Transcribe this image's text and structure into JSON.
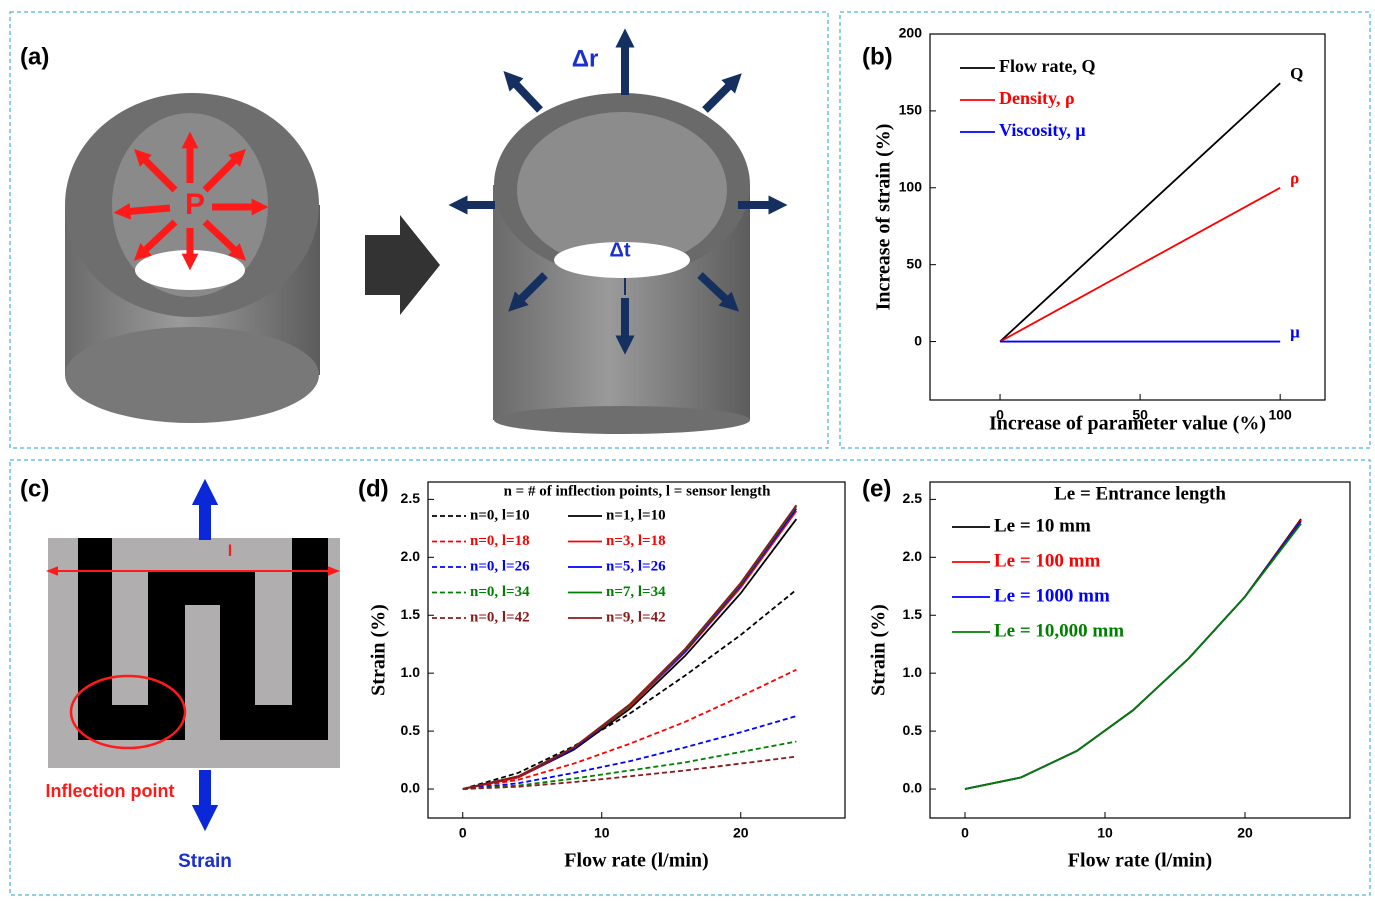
{
  "diagrams": {
    "a": {
      "label": "(a)",
      "pressure": "P",
      "radial_change": "Δr",
      "thickness_change": "Δt"
    },
    "c": {
      "label": "(c)",
      "length": "l",
      "inflection": "Inflection point",
      "strain": "Strain"
    }
  },
  "chart_data": [
    {
      "type": "line",
      "panel_label": "(b)",
      "x_label": "Increase of parameter value (%)",
      "y_label": "Increase of strain (%)",
      "x": [
        0,
        100
      ],
      "xlim": [
        -25,
        116
      ],
      "ylim": [
        -38,
        200
      ],
      "xticks": [
        0,
        50,
        100
      ],
      "yticks": [
        0,
        50,
        100,
        150,
        200
      ],
      "series": [
        {
          "name": "Flow rate, Q",
          "label": "Q",
          "color": "#000000",
          "values": [
            0,
            168
          ]
        },
        {
          "name": "Density, ρ",
          "label": "ρ",
          "color": "#ff0000",
          "values": [
            0,
            100
          ]
        },
        {
          "name": "Viscosity, μ",
          "label": "μ",
          "color": "#0000ff",
          "values": [
            0,
            0
          ]
        }
      ]
    },
    {
      "type": "line",
      "panel_label": "(d)",
      "x_label": "Flow rate (l/min)",
      "y_label": "Strain (%)",
      "legend_title": "n = # of inflection points, l = sensor length",
      "x": [
        0,
        4,
        8,
        12,
        16,
        20,
        24
      ],
      "xlim": [
        -2.5,
        27.5
      ],
      "ylim": [
        -0.25,
        2.65
      ],
      "xticks": [
        0,
        10,
        20
      ],
      "yticks": [
        {
          "value": 0,
          "label": "0.0"
        },
        {
          "value": 0.5,
          "label": "0.5"
        },
        {
          "value": 1,
          "label": "1.0"
        },
        {
          "value": 1.5,
          "label": "1.5"
        },
        {
          "value": 2,
          "label": "2.0"
        },
        {
          "value": 2.5,
          "label": "2.5"
        }
      ],
      "series": [
        {
          "name": "n=0, l=10",
          "color": "#000000",
          "style": "dashed",
          "values": [
            0,
            0.14,
            0.37,
            0.65,
            0.98,
            1.33,
            1.72
          ]
        },
        {
          "name": "n=0, l=18",
          "color": "#ff0000",
          "style": "dashed",
          "values": [
            0,
            0.08,
            0.22,
            0.39,
            0.58,
            0.8,
            1.03
          ]
        },
        {
          "name": "n=0, l=26",
          "color": "#0000ff",
          "style": "dashed",
          "values": [
            0,
            0.05,
            0.14,
            0.24,
            0.36,
            0.49,
            0.63
          ]
        },
        {
          "name": "n=0, l=34",
          "color": "#008000",
          "style": "dashed",
          "values": [
            0,
            0.03,
            0.09,
            0.16,
            0.23,
            0.32,
            0.41
          ]
        },
        {
          "name": "n=0, l=42",
          "color": "#8b1a1a",
          "style": "dashed",
          "values": [
            0,
            0.02,
            0.06,
            0.11,
            0.16,
            0.22,
            0.28
          ]
        },
        {
          "name": "n=1, l=10",
          "color": "#000000",
          "style": "solid",
          "values": [
            0,
            0.1,
            0.34,
            0.69,
            1.15,
            1.69,
            2.33
          ]
        },
        {
          "name": "n=3, l=18",
          "color": "#ff0000",
          "style": "solid",
          "values": [
            0,
            0.1,
            0.35,
            0.71,
            1.18,
            1.74,
            2.4
          ]
        },
        {
          "name": "n=5, l=26",
          "color": "#0000ff",
          "style": "solid",
          "values": [
            0,
            0.11,
            0.35,
            0.72,
            1.19,
            1.76,
            2.42
          ]
        },
        {
          "name": "n=7, l=34",
          "color": "#008000",
          "style": "solid",
          "values": [
            0,
            0.11,
            0.36,
            0.72,
            1.2,
            1.77,
            2.44
          ]
        },
        {
          "name": "n=9, l=42",
          "color": "#8b1a1a",
          "style": "solid",
          "values": [
            0,
            0.11,
            0.36,
            0.73,
            1.21,
            1.78,
            2.45
          ]
        }
      ]
    },
    {
      "type": "line",
      "panel_label": "(e)",
      "x_label": "Flow rate (l/min)",
      "y_label": "Strain (%)",
      "legend_title": "Le = Entrance length",
      "x": [
        0,
        4,
        8,
        12,
        16,
        20,
        24
      ],
      "xlim": [
        -2.5,
        27.5
      ],
      "ylim": [
        -0.25,
        2.65
      ],
      "xticks": [
        0,
        10,
        20
      ],
      "yticks": [
        {
          "value": 0,
          "label": "0.0"
        },
        {
          "value": 0.5,
          "label": "0.5"
        },
        {
          "value": 1,
          "label": "1.0"
        },
        {
          "value": 1.5,
          "label": "1.5"
        },
        {
          "value": 2,
          "label": "2.0"
        },
        {
          "value": 2.5,
          "label": "2.5"
        }
      ],
      "series": [
        {
          "name": "Le = 10 mm",
          "color": "#000000",
          "style": "solid",
          "values": [
            0,
            0.1,
            0.33,
            0.68,
            1.13,
            1.66,
            2.33
          ]
        },
        {
          "name": "Le = 100 mm",
          "color": "#ff0000",
          "style": "solid",
          "values": [
            0,
            0.1,
            0.33,
            0.68,
            1.13,
            1.66,
            2.32
          ]
        },
        {
          "name": "Le = 1000 mm",
          "color": "#0000ff",
          "style": "solid",
          "values": [
            0,
            0.1,
            0.33,
            0.68,
            1.13,
            1.66,
            2.31
          ]
        },
        {
          "name": "Le = 10,000 mm",
          "color": "#008000",
          "style": "solid",
          "values": [
            0,
            0.1,
            0.33,
            0.68,
            1.13,
            1.66,
            2.29
          ]
        }
      ]
    }
  ]
}
